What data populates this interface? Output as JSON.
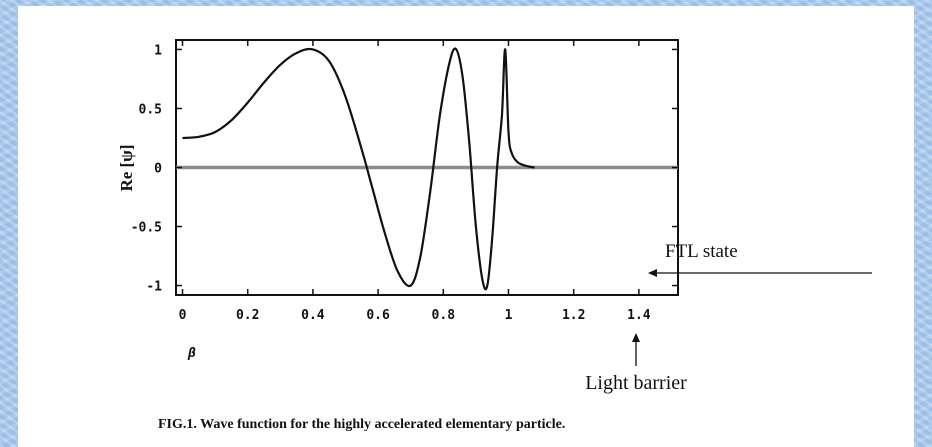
{
  "chart_data": {
    "type": "line",
    "title": "",
    "xlabel": "β",
    "ylabel": "Re [ψ]",
    "xlim": [
      -0.02,
      1.52
    ],
    "ylim": [
      -1.08,
      1.08
    ],
    "x_ticks": [
      "0",
      "0.2",
      "0.4",
      "0.6",
      "0.8",
      "1",
      "1.2",
      "1.4"
    ],
    "y_ticks": [
      "1",
      "0.5",
      "0",
      "-0.5",
      "-1"
    ],
    "grid": false,
    "series": [
      {
        "x": [
          0.0,
          0.05,
          0.1,
          0.15,
          0.2,
          0.25,
          0.3,
          0.35,
          0.4,
          0.45,
          0.5,
          0.55,
          0.58,
          0.62,
          0.66,
          0.7,
          0.73,
          0.76,
          0.79,
          0.82,
          0.84,
          0.86,
          0.88,
          0.9,
          0.92,
          0.935,
          0.95,
          0.965,
          0.98,
          0.99,
          1.0,
          1.01,
          1.03,
          1.06,
          1.08
        ],
        "y": [
          0.25,
          0.26,
          0.3,
          0.4,
          0.55,
          0.72,
          0.87,
          0.97,
          1.0,
          0.9,
          0.6,
          0.15,
          -0.15,
          -0.55,
          -0.88,
          -1.0,
          -0.75,
          -0.2,
          0.45,
          0.9,
          1.0,
          0.75,
          0.2,
          -0.5,
          -0.95,
          -1.0,
          -0.6,
          0.0,
          0.45,
          1.0,
          0.3,
          0.12,
          0.04,
          0.01,
          0.0
        ]
      }
    ],
    "reference_line": {
      "y": 0
    },
    "annotations": [
      {
        "text": "FTL state",
        "points_to_x": 1.0,
        "direction": "arrow from right"
      },
      {
        "text": "Light barrier",
        "points_to_x": 1.0,
        "direction": "arrow from below"
      }
    ],
    "caption": "FIG.1. Wave function for the highly accelerated elementary particle."
  },
  "colors": {
    "background_blue": "#a7c8ec",
    "curve": "#111111",
    "zero_line": "#888888"
  }
}
